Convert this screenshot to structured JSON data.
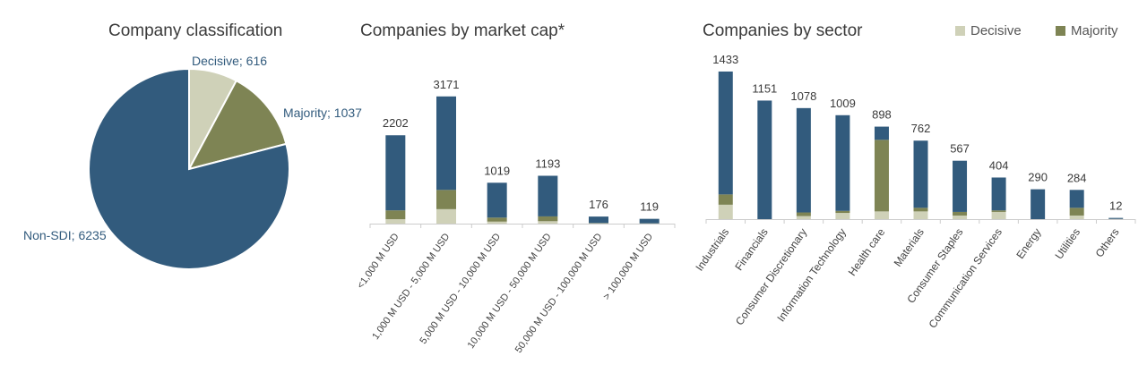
{
  "colors": {
    "non_sdi": "#325b7d",
    "majority": "#7e8454",
    "decisive": "#cfd1b8",
    "label_text": "#325b7d",
    "value_text": "#3a3a3a",
    "tick_text": "#444444",
    "axis": "#cccccc"
  },
  "legend": {
    "items": [
      {
        "label": "Decisive",
        "color": "#cfd1b8"
      },
      {
        "label": "Majority",
        "color": "#7e8454"
      }
    ]
  },
  "chart_data": [
    {
      "type": "pie",
      "title": "Company classification",
      "slices": [
        {
          "label": "Decisive",
          "value": 616,
          "display": "Decisive; 616",
          "color": "#cfd1b8"
        },
        {
          "label": "Majority",
          "value": 1037,
          "display": "Majority; 1037",
          "color": "#7e8454"
        },
        {
          "label": "Non-SDI",
          "value": 6235,
          "display": "Non-SDI; 6235",
          "color": "#325b7d"
        }
      ]
    },
    {
      "type": "bar",
      "stacked": true,
      "title": "Companies by market cap*",
      "categories": [
        "<1,000 M USD",
        "1,000 M USD - 5,000 M USD",
        "5,000 M USD - 10,000 M USD",
        "10,000 M USD - 50,000 M USD",
        "50,000 M USD - 100,000 M USD",
        "> 100,000 M USD"
      ],
      "totals": [
        2202,
        3171,
        1019,
        1193,
        176,
        119
      ],
      "ylim": [
        0,
        3300
      ],
      "series": [
        {
          "name": "Decisive",
          "color": "#cfd1b8",
          "values": [
            110,
            360,
            50,
            60,
            5,
            2
          ]
        },
        {
          "name": "Majority",
          "color": "#7e8454",
          "values": [
            220,
            480,
            100,
            120,
            10,
            5
          ]
        },
        {
          "name": "Non-SDI",
          "color": "#325b7d",
          "values": [
            1872,
            2331,
            869,
            1013,
            161,
            112
          ]
        }
      ]
    },
    {
      "type": "bar",
      "stacked": true,
      "title": "Companies by sector",
      "categories": [
        "Industrials",
        "Financials",
        "Consumer Discretionary",
        "Information Technology",
        "Health care",
        "Materials",
        "Consumer Staples",
        "Communication Services",
        "Energy",
        "Utilities",
        "Others"
      ],
      "totals": [
        1433,
        1151,
        1078,
        1009,
        898,
        762,
        567,
        404,
        290,
        284,
        12
      ],
      "ylim": [
        0,
        1450
      ],
      "series": [
        {
          "name": "Decisive",
          "color": "#cfd1b8",
          "values": [
            140,
            0,
            30,
            60,
            75,
            75,
            35,
            70,
            0,
            35,
            1
          ]
        },
        {
          "name": "Majority",
          "color": "#7e8454",
          "values": [
            100,
            0,
            35,
            20,
            695,
            35,
            35,
            15,
            0,
            75,
            1
          ]
        },
        {
          "name": "Non-SDI",
          "color": "#325b7d",
          "values": [
            1193,
            1151,
            1013,
            929,
            128,
            652,
            497,
            319,
            290,
            174,
            10
          ]
        }
      ]
    }
  ]
}
